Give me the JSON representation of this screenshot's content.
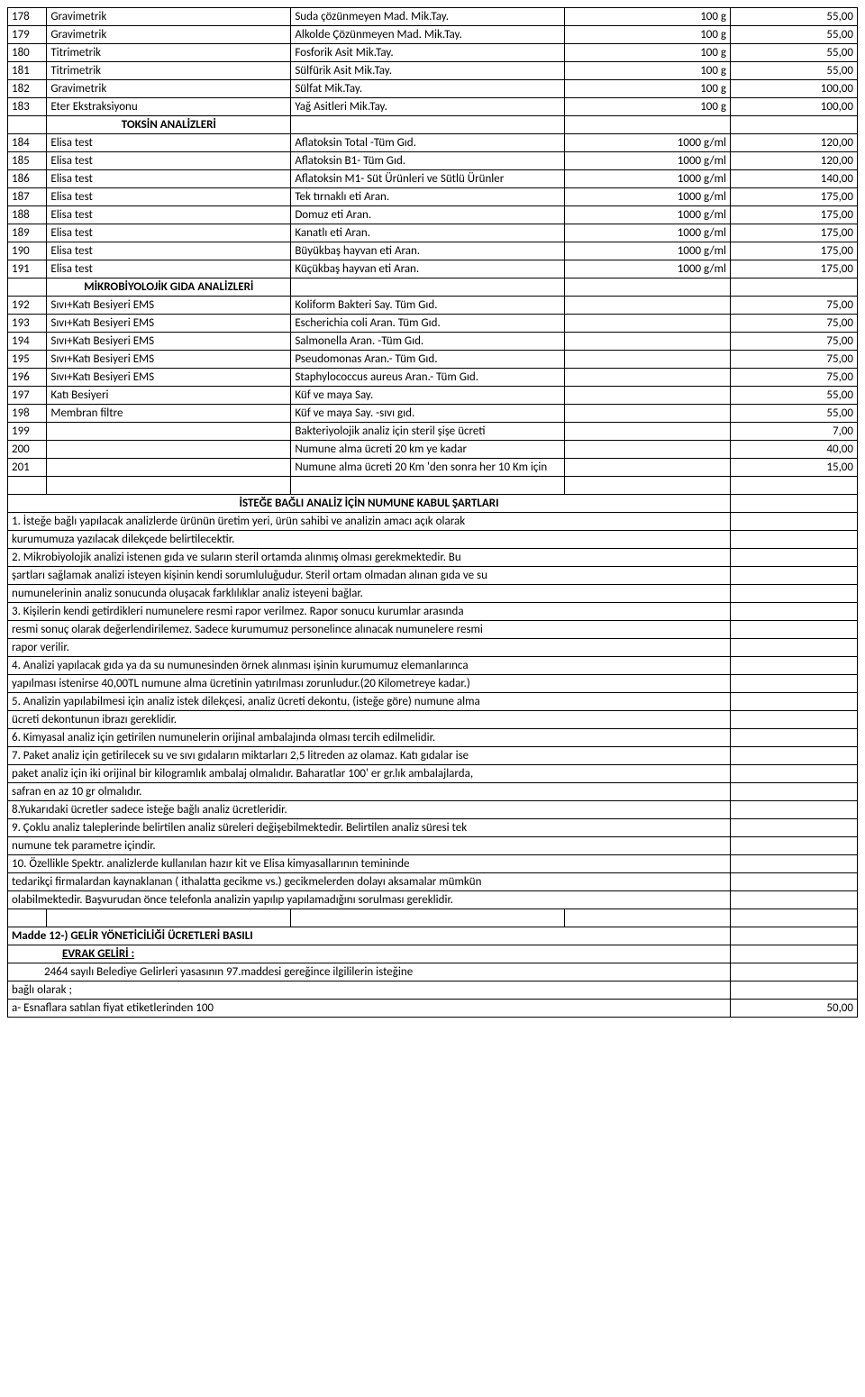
{
  "table1": {
    "rows": [
      {
        "num": "178",
        "name": "Gravimetrik",
        "desc": "Suda çözünmeyen Mad. Mik.Tay.",
        "qty": "100 g",
        "price": "55,00"
      },
      {
        "num": "179",
        "name": "Gravimetrik",
        "desc": "Alkolde Çözünmeyen Mad. Mik.Tay.",
        "qty": "100 g",
        "price": "55,00"
      },
      {
        "num": "180",
        "name": "Titrimetrik",
        "desc": "Fosforik Asit Mik.Tay.",
        "qty": "100 g",
        "price": "55,00"
      },
      {
        "num": "181",
        "name": "Titrimetrik",
        "desc": "Sülfürik Asit Mik.Tay.",
        "qty": "100 g",
        "price": "55,00"
      },
      {
        "num": "182",
        "name": "Gravimetrik",
        "desc": "Sülfat Mik.Tay.",
        "qty": "100 g",
        "price": "100,00"
      },
      {
        "num": "183",
        "name": "Eter Ekstraksiyonu",
        "desc": "Yağ Asitleri Mik.Tay.",
        "qty": "100 g",
        "price": "100,00"
      }
    ],
    "header1": "TOKSİN ANALİZLERİ",
    "rows2": [
      {
        "num": "184",
        "name": "Elisa test",
        "desc": "Aflatoksin Total -Tüm Gıd.",
        "qty": "1000 g/ml",
        "price": "120,00"
      },
      {
        "num": "185",
        "name": "Elisa test",
        "desc": "Aflatoksin B1- Tüm Gıd.",
        "qty": "1000 g/ml",
        "price": "120,00"
      },
      {
        "num": "186",
        "name": "Elisa test",
        "desc": "Aflatoksin M1- Süt Ürünleri ve Sütlü Ürünler",
        "qty": "1000 g/ml",
        "price": "140,00"
      },
      {
        "num": "187",
        "name": "Elisa test",
        "desc": "Tek tırnaklı eti Aran.",
        "qty": "1000 g/ml",
        "price": "175,00"
      },
      {
        "num": "188",
        "name": "Elisa test",
        "desc": "Domuz eti Aran.",
        "qty": "1000 g/ml",
        "price": "175,00"
      },
      {
        "num": "189",
        "name": "Elisa test",
        "desc": "Kanatlı eti Aran.",
        "qty": "1000 g/ml",
        "price": "175,00"
      },
      {
        "num": "190",
        "name": "Elisa test",
        "desc": "Büyükbaş hayvan eti Aran.",
        "qty": "1000 g/ml",
        "price": "175,00"
      },
      {
        "num": "191",
        "name": "Elisa test",
        "desc": "Küçükbaş hayvan eti Aran.",
        "qty": "1000 g/ml",
        "price": "175,00"
      }
    ],
    "header2": "MİKROBİYOLOJİK GIDA ANALİZLERİ",
    "rows3": [
      {
        "num": "192",
        "name": "Sıvı+Katı Besiyeri EMS",
        "desc": "Koliform Bakteri Say. Tüm Gıd.",
        "qty": "",
        "price": "75,00"
      },
      {
        "num": "193",
        "name": "Sıvı+Katı Besiyeri EMS",
        "desc": "Escherichia coli Aran. Tüm Gıd.",
        "qty": "",
        "price": "75,00"
      },
      {
        "num": "194",
        "name": "Sıvı+Katı Besiyeri EMS",
        "desc": "Salmonella Aran. -Tüm Gıd.",
        "qty": "",
        "price": "75,00"
      },
      {
        "num": "195",
        "name": "Sıvı+Katı Besiyeri EMS",
        "desc": "Pseudomonas Aran.- Tüm Gıd.",
        "qty": "",
        "price": "75,00"
      },
      {
        "num": "196",
        "name": "Sıvı+Katı Besiyeri EMS",
        "desc": "Staphylococcus aureus Aran.- Tüm Gıd.",
        "qty": "",
        "price": "75,00"
      },
      {
        "num": "197",
        "name": "Katı Besiyeri",
        "desc": "Küf ve maya Say.",
        "qty": "",
        "price": "55,00"
      },
      {
        "num": "198",
        "name": "Membran filtre",
        "desc": "Küf ve maya Say. -sıvı gıd.",
        "qty": "",
        "price": "55,00"
      },
      {
        "num": "199",
        "name": "",
        "desc": "Bakteriyolojik analiz için steril şişe ücreti",
        "qty": "",
        "price": "7,00"
      },
      {
        "num": "200",
        "name": "",
        "desc": "Numune alma ücreti 20 km ye kadar",
        "qty": "",
        "price": "40,00"
      },
      {
        "num": "201",
        "name": "",
        "desc": "Numune alma ücreti 20 Km 'den sonra her 10 Km için",
        "qty": "",
        "price": "15,00"
      }
    ]
  },
  "conditions": {
    "title": "İSTEĞE BAĞLI ANALİZ İÇİN NUMUNE KABUL ŞARTLARI",
    "lines": [
      "1. İsteğe bağlı yapılacak analizlerde ürünün üretim yeri, ürün sahibi ve analizin amacı açık olarak",
      "kurumumuza yazılacak dilekçede belirtilecektir.",
      "2. Mikrobiyolojik analizi istenen gıda ve suların steril ortamda alınmış olması gerekmektedir. Bu",
      "şartları sağlamak analizi isteyen kişinin kendi sorumluluğudur. Steril ortam olmadan alınan gıda ve su",
      "numunelerinin analiz sonucunda oluşacak farklılıklar analiz isteyeni bağlar.",
      "3. Kişilerin kendi getirdikleri numunelere resmi rapor verilmez. Rapor sonucu kurumlar arasında",
      "resmi sonuç olarak değerlendirilemez. Sadece kurumumuz personelince alınacak numunelere resmi",
      "rapor verilir.",
      "4. Analizi yapılacak gıda ya da su numunesinden örnek alınması işinin kurumumuz elemanlarınca",
      "yapılması istenirse 40,00TL numune alma ücretinin yatırılması zorunludur.(20 Kilometreye kadar.)",
      "5. Analizin yapılabilmesi için analiz istek dilekçesi, analiz ücreti dekontu, (isteğe göre) numune alma",
      "ücreti dekontunun ibrazı gereklidir.",
      "6. Kimyasal analiz için getirilen numunelerin orijinal ambalajında olması tercih edilmelidir.",
      "7. Paket analiz için getirilecek su ve sıvı gıdaların miktarları 2,5 litreden az olamaz. Katı gıdalar ise",
      "paket analiz için iki orijinal bir kilogramlık ambalaj olmalıdır. Baharatlar 100' er gr.lık ambalajlarda,",
      "safran en az 10 gr olmalıdır.",
      "8.Yukarıdaki ücretler sadece isteğe bağlı analiz ücretleridir.",
      "9. Çoklu analiz taleplerinde belirtilen analiz süreleri değişebilmektedir. Belirtilen analiz süresi tek",
      "numune tek parametre içindir.",
      "10. Özellikle Spektr. analizlerde kullanılan hazır kit ve Elisa kimyasallarının temininde",
      "tedarikçi firmalardan kaynaklanan ( ithalatta gecikme vs.) gecikmelerden dolayı aksamalar mümkün",
      "olabilmektedir. Başvurudan önce telefonla analizin yapılıp yapılamadığını sorulması gereklidir."
    ]
  },
  "footer": {
    "madde": "Madde 12-)  GELİR YÖNETİCİLİĞİ ÜCRETLERİ BASILI",
    "evrak": "EVRAK GELİRİ :",
    "sub1": "2464 sayılı Belediye Gelirleri yasasının 97.maddesi gereğince ilgililerin isteğine",
    "sub2": "  bağlı olarak ;",
    "row": {
      "text": "a- Esnaflara satılan fiyat etiketlerinden 100",
      "price": "50,00"
    }
  }
}
